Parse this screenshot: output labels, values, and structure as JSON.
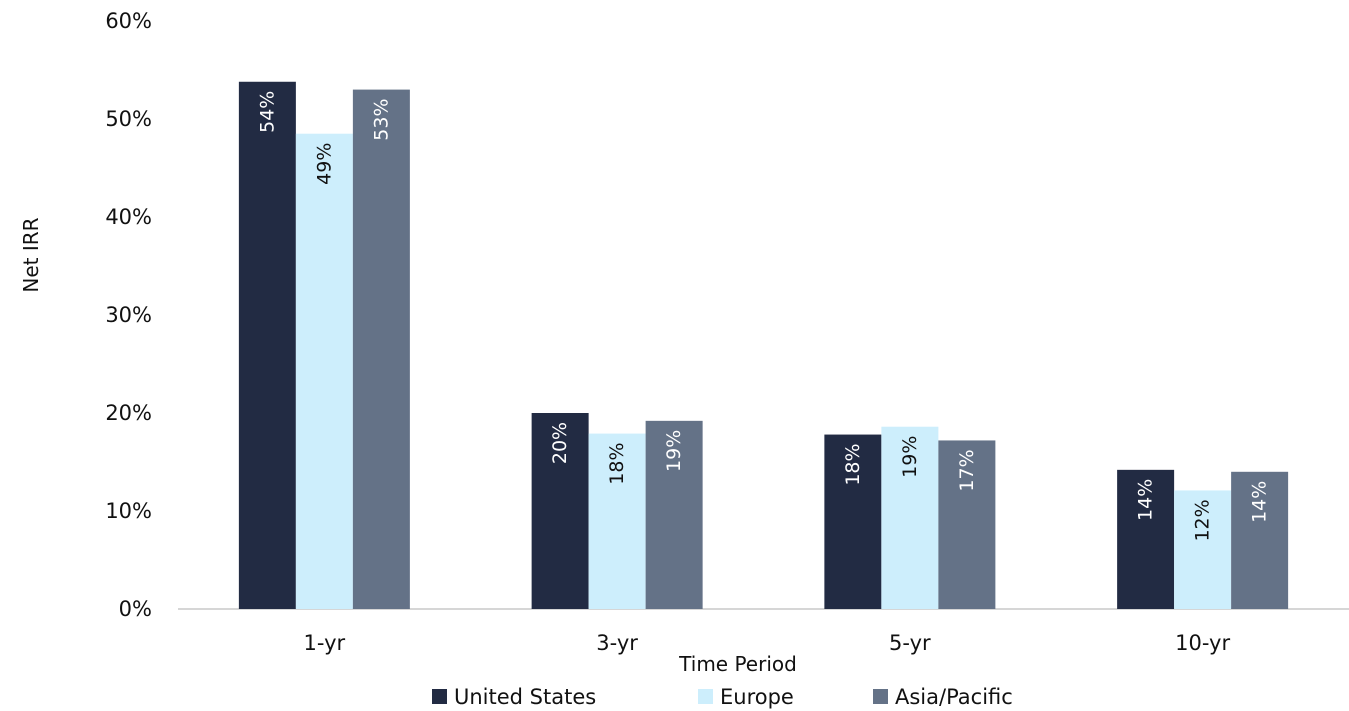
{
  "chart_data": {
    "type": "bar",
    "xlabel": "Time Period",
    "ylabel": "Net IRR",
    "categories": [
      "1-yr",
      "3-yr",
      "5-yr",
      "10-yr"
    ],
    "ylim": [
      0,
      60
    ],
    "yticks": [
      0,
      10,
      20,
      30,
      40,
      50,
      60
    ],
    "ytick_labels": [
      "0%",
      "10%",
      "20%",
      "30%",
      "40%",
      "50%",
      "60%"
    ],
    "grid": false,
    "legend_position": "bottom",
    "series": [
      {
        "name": "United States",
        "color": "#222b43",
        "label_color": "#ffffff",
        "values": [
          53.8,
          20.0,
          17.8,
          14.2
        ],
        "data_labels": [
          "54%",
          "20%",
          "18%",
          "14%"
        ]
      },
      {
        "name": "Europe",
        "color": "#cdeefc",
        "label_color": "#111111",
        "values": [
          48.5,
          17.9,
          18.6,
          12.1
        ],
        "data_labels": [
          "49%",
          "18%",
          "19%",
          "12%"
        ]
      },
      {
        "name": "Asia/Pacific",
        "color": "#647287",
        "label_color": "#ffffff",
        "values": [
          53.0,
          19.2,
          17.2,
          14.0
        ],
        "data_labels": [
          "53%",
          "19%",
          "17%",
          "14%"
        ]
      }
    ]
  }
}
